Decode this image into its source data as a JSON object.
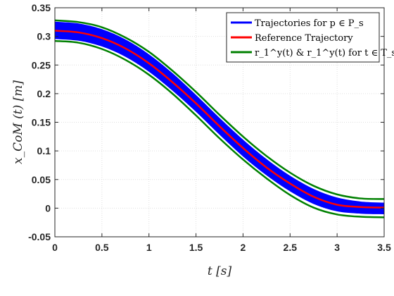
{
  "chart_data": {
    "type": "line",
    "xlabel": "t [s]",
    "ylabel": "x_CoM (t) [m]",
    "xlim": [
      0,
      3.5
    ],
    "ylim": [
      -0.05,
      0.35
    ],
    "xticks": [
      "0",
      "0.5",
      "1",
      "1.5",
      "2",
      "2.5",
      "3",
      "3.5"
    ],
    "yticks": [
      "-0.05",
      "0",
      "0.05",
      "0.1",
      "0.15",
      "0.2",
      "0.25",
      "0.3",
      "0.35"
    ],
    "grid": true,
    "legend_position": "top-right",
    "colors": {
      "band": "#0000ff",
      "reference": "#ff0000",
      "bounds": "#008000"
    },
    "x": [
      0,
      0.25,
      0.5,
      0.75,
      1.0,
      1.25,
      1.5,
      1.75,
      2.0,
      2.25,
      2.5,
      2.75,
      3.0,
      3.25,
      3.5
    ],
    "series": [
      {
        "name": "Trajectories for p ∈ P_s",
        "kind": "band",
        "upper": [
          0.325,
          0.322,
          0.312,
          0.294,
          0.268,
          0.235,
          0.197,
          0.157,
          0.119,
          0.085,
          0.056,
          0.033,
          0.018,
          0.011,
          0.009
        ],
        "lower": [
          0.296,
          0.293,
          0.283,
          0.265,
          0.239,
          0.206,
          0.169,
          0.129,
          0.091,
          0.058,
          0.03,
          0.008,
          -0.005,
          -0.009,
          -0.01
        ]
      },
      {
        "name": "Reference Trajectory",
        "kind": "line",
        "values": [
          0.31,
          0.307,
          0.297,
          0.279,
          0.253,
          0.22,
          0.183,
          0.143,
          0.105,
          0.071,
          0.043,
          0.02,
          0.006,
          0.002,
          0.001
        ]
      },
      {
        "name": "r_1^y(t) & r_1^y(t) for t ∈ T_s",
        "kind": "bounds",
        "upper": [
          0.328,
          0.325,
          0.316,
          0.298,
          0.273,
          0.24,
          0.203,
          0.163,
          0.125,
          0.091,
          0.062,
          0.039,
          0.024,
          0.017,
          0.016
        ],
        "lower": [
          0.292,
          0.289,
          0.278,
          0.259,
          0.233,
          0.2,
          0.162,
          0.122,
          0.085,
          0.052,
          0.023,
          0.001,
          -0.011,
          -0.015,
          -0.016
        ]
      }
    ]
  }
}
